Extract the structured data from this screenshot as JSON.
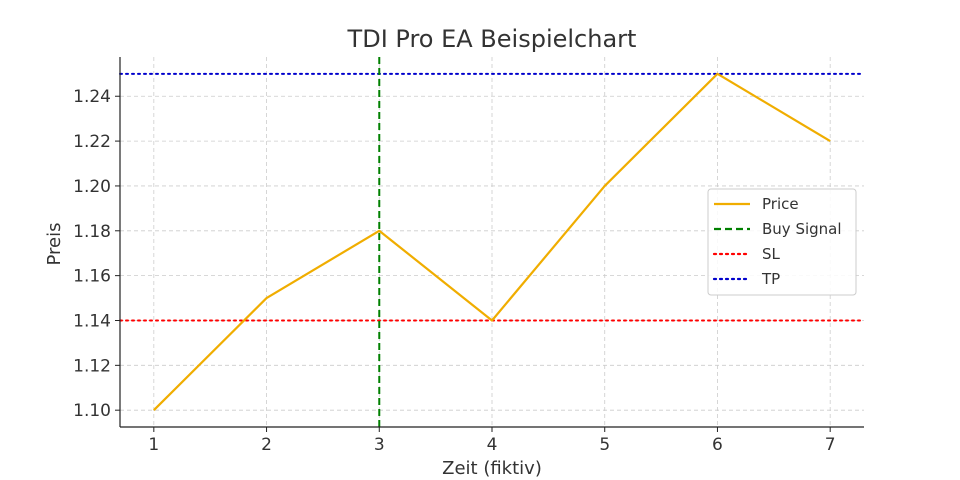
{
  "chart_data": {
    "type": "line",
    "title": "TDI Pro EA Beispielchart",
    "xlabel": "Zeit (fiktiv)",
    "ylabel": "Preis",
    "x": [
      1,
      2,
      3,
      4,
      5,
      6,
      7
    ],
    "xticks": [
      "1",
      "2",
      "3",
      "4",
      "5",
      "6",
      "7"
    ],
    "xlim": [
      0.7,
      7.3
    ],
    "yticks": [
      "1.10",
      "1.12",
      "1.14",
      "1.16",
      "1.18",
      "1.20",
      "1.22",
      "1.24"
    ],
    "ytick_values": [
      1.1,
      1.12,
      1.14,
      1.16,
      1.18,
      1.2,
      1.22,
      1.24
    ],
    "ylim": [
      1.0925,
      1.2575
    ],
    "grid": true,
    "legend_position": "center-right",
    "series": [
      {
        "name": "Price",
        "values": [
          1.1,
          1.15,
          1.18,
          1.14,
          1.2,
          1.25,
          1.22
        ],
        "color": "#f0ad00",
        "style": "solid"
      }
    ],
    "markers": {
      "buy_signal": {
        "name": "Buy Signal",
        "x": 3,
        "color": "#008000",
        "style": "dashed"
      },
      "sl": {
        "name": "SL",
        "y": 1.14,
        "color": "#ff0000",
        "style": "dotted"
      },
      "tp": {
        "name": "TP",
        "y": 1.25,
        "color": "#0000cc",
        "style": "dotted"
      }
    }
  }
}
